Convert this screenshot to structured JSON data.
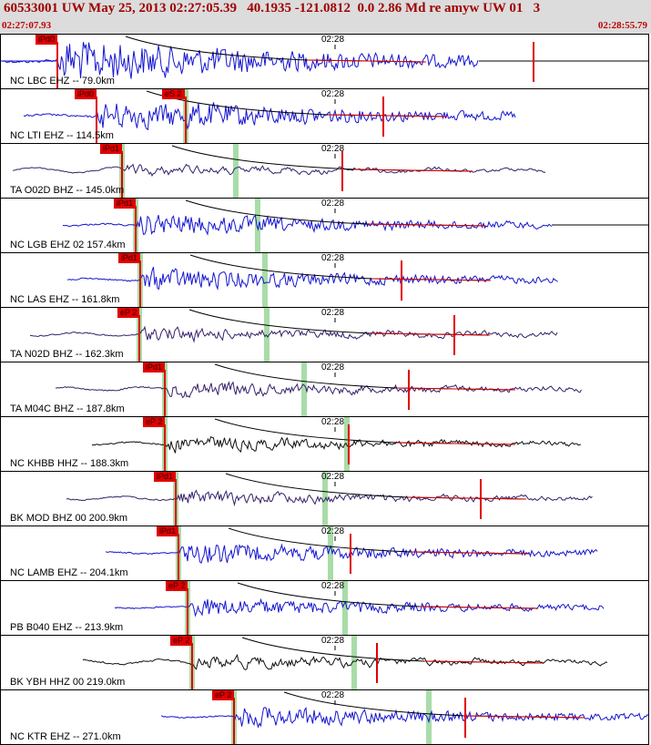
{
  "header": {
    "title": "60533001 UW May 25, 2013 02:27:05.39   40.1935 -121.0812  0.0 2.86 Md re amyw UW 01   3",
    "start_time": "02:27:07.93",
    "end_time": "02:28:55.79"
  },
  "time_tick_label": "02:28",
  "colors": {
    "blue": "#1515d0",
    "purple": "#35206a",
    "black": "#101010",
    "pick": "#e00000",
    "phase_band": "#a8dca8",
    "header_bg": "#dcdcdc"
  },
  "traces": [
    {
      "station": "NC LBC EHZ -- 79.0km",
      "pick": "iPd0",
      "pick2": "",
      "color": "blue",
      "p": 62,
      "s": 0,
      "end": 525,
      "amp": 1.0,
      "gain": 0.6,
      "lp": 0.2,
      "greens": [],
      "redline": 585
    },
    {
      "station": "NC LTI EHZ -- 114.5km",
      "pick": "iPd0",
      "pick2": "eS 2",
      "color": "blue",
      "p": 105,
      "s": 203,
      "end": 565,
      "amp": 0.7,
      "gain": 0.4,
      "lp": 0.3,
      "greens": [
        203
      ],
      "redline": 420
    },
    {
      "station": "TA O02D BHZ -- 145.0km",
      "pick": "iPd1",
      "pick2": "",
      "color": "purple",
      "p": 133,
      "s": 0,
      "end": 598,
      "amp": 0.45,
      "gain": 0.2,
      "lp": 0.75,
      "greens": [
        133,
        258
      ],
      "redline": 375
    },
    {
      "station": "NC LGB EHZ 02 157.4km",
      "pick": "iPd1",
      "pick2": "",
      "color": "blue",
      "p": 148,
      "s": 0,
      "end": 605,
      "amp": 0.55,
      "gain": 0.4,
      "lp": 0.3,
      "greens": [
        148,
        282
      ],
      "redline": 0
    },
    {
      "station": "NC LAS EHZ -- 161.8km",
      "pick": "iPd1",
      "pick2": "",
      "color": "blue",
      "p": 153,
      "s": 0,
      "end": 612,
      "amp": 0.55,
      "gain": 0.4,
      "lp": 0.3,
      "greens": [
        153,
        290
      ],
      "redline": 440
    },
    {
      "station": "TA N02D BHZ -- 162.3km",
      "pick": "eP 2",
      "pick2": "",
      "color": "purple",
      "p": 152,
      "s": 0,
      "end": 612,
      "amp": 0.45,
      "gain": 0.3,
      "lp": 0.55,
      "greens": [
        152,
        292
      ],
      "redline": 498
    },
    {
      "station": "TA M04C BHZ -- 187.8km",
      "pick": "iPd1",
      "pick2": "",
      "color": "purple",
      "p": 180,
      "s": 0,
      "end": 638,
      "amp": 0.5,
      "gain": 0.25,
      "lp": 0.55,
      "greens": [
        180,
        333
      ],
      "redline": 448
    },
    {
      "station": "NC KHBB HHZ -- 188.3km",
      "pick": "eP 2",
      "pick2": "",
      "color": "black",
      "p": 180,
      "s": 0,
      "end": 638,
      "amp": 0.45,
      "gain": 0.3,
      "lp": 0.5,
      "greens": [
        180,
        380
      ],
      "redline": 382
    },
    {
      "station": "BK MOD BHZ 00 200.9km",
      "pick": "iPd1",
      "pick2": "",
      "color": "purple",
      "p": 192,
      "s": 0,
      "end": 650,
      "amp": 0.45,
      "gain": 0.3,
      "lp": 0.55,
      "greens": [
        192,
        356
      ],
      "redline": 527
    },
    {
      "station": "NC LAMB EHZ -- 204.1km",
      "pick": "iPd1",
      "pick2": "",
      "color": "blue",
      "p": 195,
      "s": 0,
      "end": 655,
      "amp": 0.5,
      "gain": 0.55,
      "lp": 0.25,
      "greens": [
        195,
        362
      ],
      "redline": 384
    },
    {
      "station": "PB B040 EHZ -- 213.9km",
      "pick": "eP 2",
      "pick2": "",
      "color": "blue",
      "p": 205,
      "s": 0,
      "end": 663,
      "amp": 0.45,
      "gain": 0.55,
      "lp": 0.25,
      "greens": [
        205,
        378
      ],
      "redline": 0
    },
    {
      "station": "BK YBH HHZ 00 219.0km",
      "pick": "eP 2",
      "pick2": "",
      "color": "black",
      "p": 210,
      "s": 0,
      "end": 667,
      "amp": 0.55,
      "gain": 0.35,
      "lp": 0.7,
      "greens": [
        210,
        388
      ],
      "redline": 413
    },
    {
      "station": "NC KTR EHZ -- 271.0km",
      "pick": "eP 2",
      "pick2": "",
      "color": "blue",
      "p": 256,
      "s": 0,
      "end": 713,
      "amp": 0.5,
      "gain": 0.5,
      "lp": 0.25,
      "greens": [
        256,
        470
      ],
      "redline": 510
    }
  ]
}
